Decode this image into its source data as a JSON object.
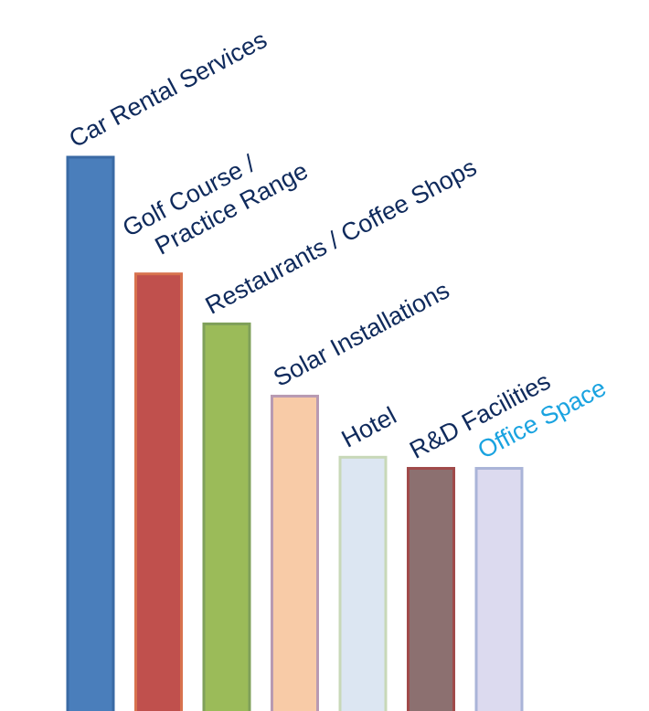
{
  "chart_data": {
    "type": "bar",
    "categories": [
      "Car Rental Services",
      "Golf Course / Practice Range",
      "Restaurants / Coffee Shops",
      "Solar Installations",
      "Hotel",
      "R&D Facilities",
      "Office Space"
    ],
    "label_lines": [
      [
        "Car Rental Services"
      ],
      [
        "Golf Course /",
        "Practice Range"
      ],
      [
        "Restaurants / Coffee Shops"
      ],
      [
        "Solar Installations"
      ],
      [
        "Hotel"
      ],
      [
        "R&D Facilities"
      ],
      [
        "Office Space"
      ]
    ],
    "values": [
      100,
      79,
      70,
      57,
      46,
      44,
      44
    ],
    "ylim": [
      0,
      100
    ],
    "title": "",
    "xlabel": "",
    "ylabel": "",
    "grid": false,
    "legend": "none",
    "colors": [
      "#4a7ebb",
      "#c0504d",
      "#9bbb59",
      "#f8cba7",
      "#dce6f2",
      "#8c7070",
      "#dcdaef"
    ],
    "edge_colors": [
      "#3a6aa4",
      "#d8724e",
      "#7fa05a",
      "#b89ab2",
      "#c8d8b8",
      "#a04a4a",
      "#aab4d8"
    ],
    "label_colors": [
      "#0f2a5c",
      "#0f2a5c",
      "#0f2a5c",
      "#0f2a5c",
      "#0f2a5c",
      "#0f2a5c",
      "#1aa3e0"
    ]
  }
}
